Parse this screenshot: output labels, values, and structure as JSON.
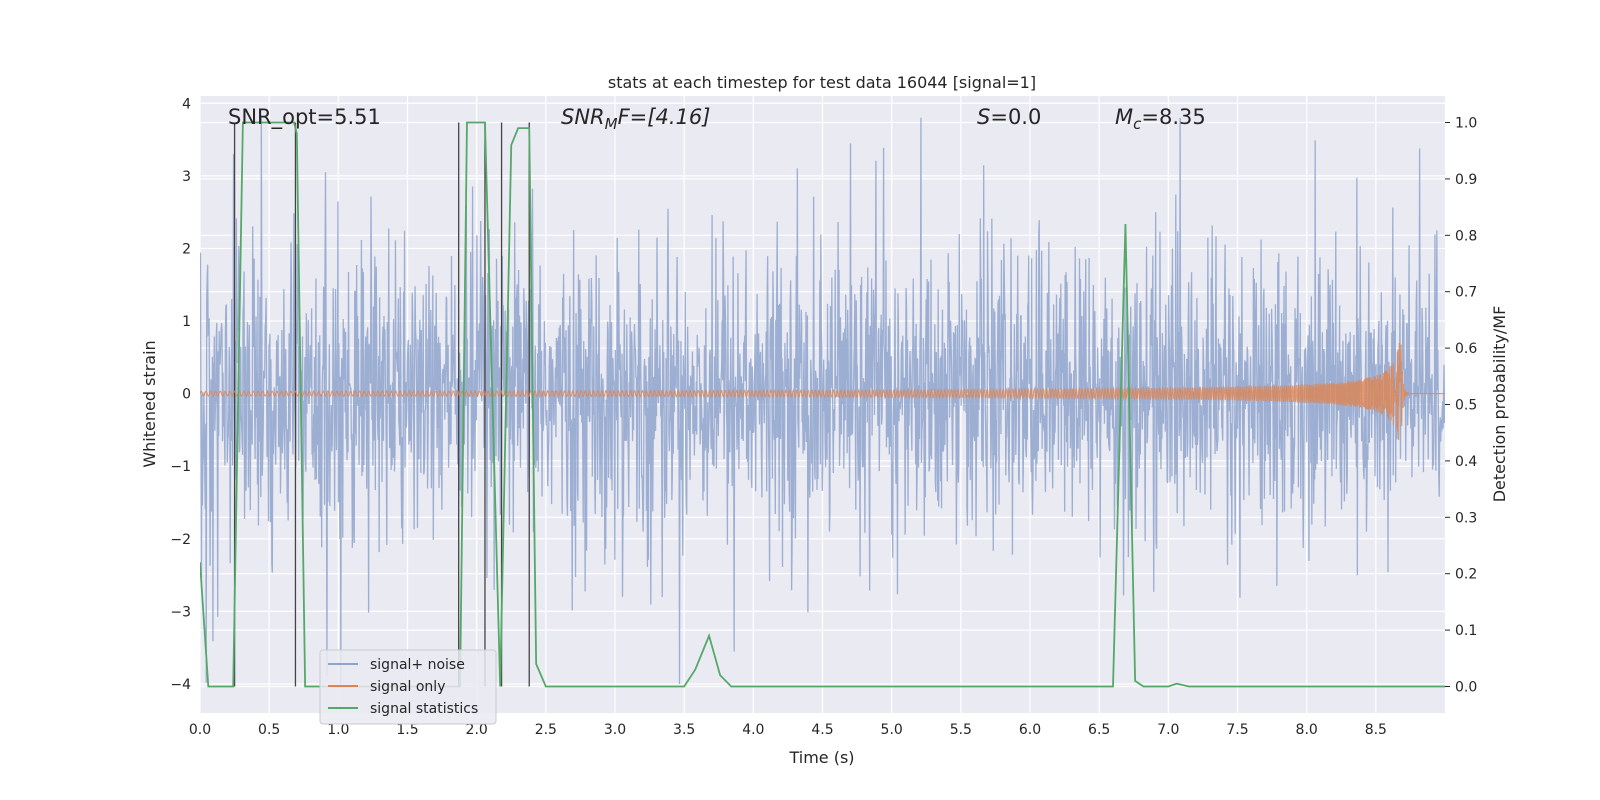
{
  "chart_data": {
    "type": "line",
    "title": "stats at each timestep for test data 16044 [signal=1]",
    "xlabel": "Time (s)",
    "ylabel_left": "Whitened strain",
    "ylabel_right": "Detection probability/MF",
    "xlim": [
      0.0,
      9.0
    ],
    "ylim_left": [
      -4.4,
      4.1
    ],
    "ylim_right": [
      -0.047,
      1.047
    ],
    "xticks": [
      "0.0",
      "0.5",
      "1.0",
      "1.5",
      "2.0",
      "2.5",
      "3.0",
      "3.5",
      "4.0",
      "4.5",
      "5.0",
      "5.5",
      "6.0",
      "6.5",
      "7.0",
      "7.5",
      "8.0",
      "8.5"
    ],
    "yticks_left": [
      "−4",
      "−3",
      "−2",
      "−1",
      "0",
      "1",
      "2",
      "3",
      "4"
    ],
    "yticks_right": [
      "0.0",
      "0.1",
      "0.2",
      "0.3",
      "0.4",
      "0.5",
      "0.6",
      "0.7",
      "0.8",
      "0.9",
      "1.0"
    ],
    "grid": true,
    "legend_position": "lower-left",
    "annotations": {
      "snr_opt": "SNR_opt=5.51",
      "snr_mf_main": "SNR",
      "snr_mf_sub": "M",
      "snr_mf_rest": "F=[4.16]",
      "s_main": "S",
      "s_rest": "=0.0",
      "mc_main": "M",
      "mc_sub": "c",
      "mc_rest": "=8.35"
    },
    "series": [
      {
        "name": "signal+ noise",
        "color": "#8ea3cc",
        "style": "noise",
        "sigma": 0.9,
        "note_range": [
          -4.0,
          3.8
        ]
      },
      {
        "name": "signal only",
        "color": "#dd8452",
        "style": "chirp",
        "merger_time": 8.68,
        "peak_amplitude": 0.9
      },
      {
        "name": "signal statistics",
        "color": "#55a868",
        "axis": "right",
        "x": [
          0.0,
          0.06,
          0.15,
          0.24,
          0.31,
          0.4,
          0.68,
          0.7,
          0.76,
          0.9,
          1.5,
          1.88,
          1.93,
          2.06,
          2.17,
          2.25,
          2.3,
          2.38,
          2.43,
          2.5,
          3.0,
          3.5,
          3.58,
          3.68,
          3.76,
          3.84,
          3.92,
          4.5,
          6.5,
          6.6,
          6.69,
          6.76,
          6.82,
          7.0,
          7.06,
          7.15,
          8.0,
          9.0
        ],
        "y": [
          0.22,
          0.0,
          0.0,
          0.0,
          1.0,
          1.0,
          1.0,
          0.98,
          0.0,
          0.0,
          0.0,
          0.0,
          1.0,
          1.0,
          0.0,
          0.96,
          0.99,
          0.99,
          0.04,
          0.0,
          0.0,
          0.0,
          0.03,
          0.09,
          0.02,
          0.0,
          0.0,
          0.0,
          0.0,
          0.0,
          0.82,
          0.01,
          0.0,
          0.0,
          0.005,
          0.0,
          0.0,
          0.0
        ]
      }
    ],
    "vertical_markers_x": [
      0.25,
      0.69,
      1.87,
      2.06,
      2.18,
      2.38
    ]
  }
}
